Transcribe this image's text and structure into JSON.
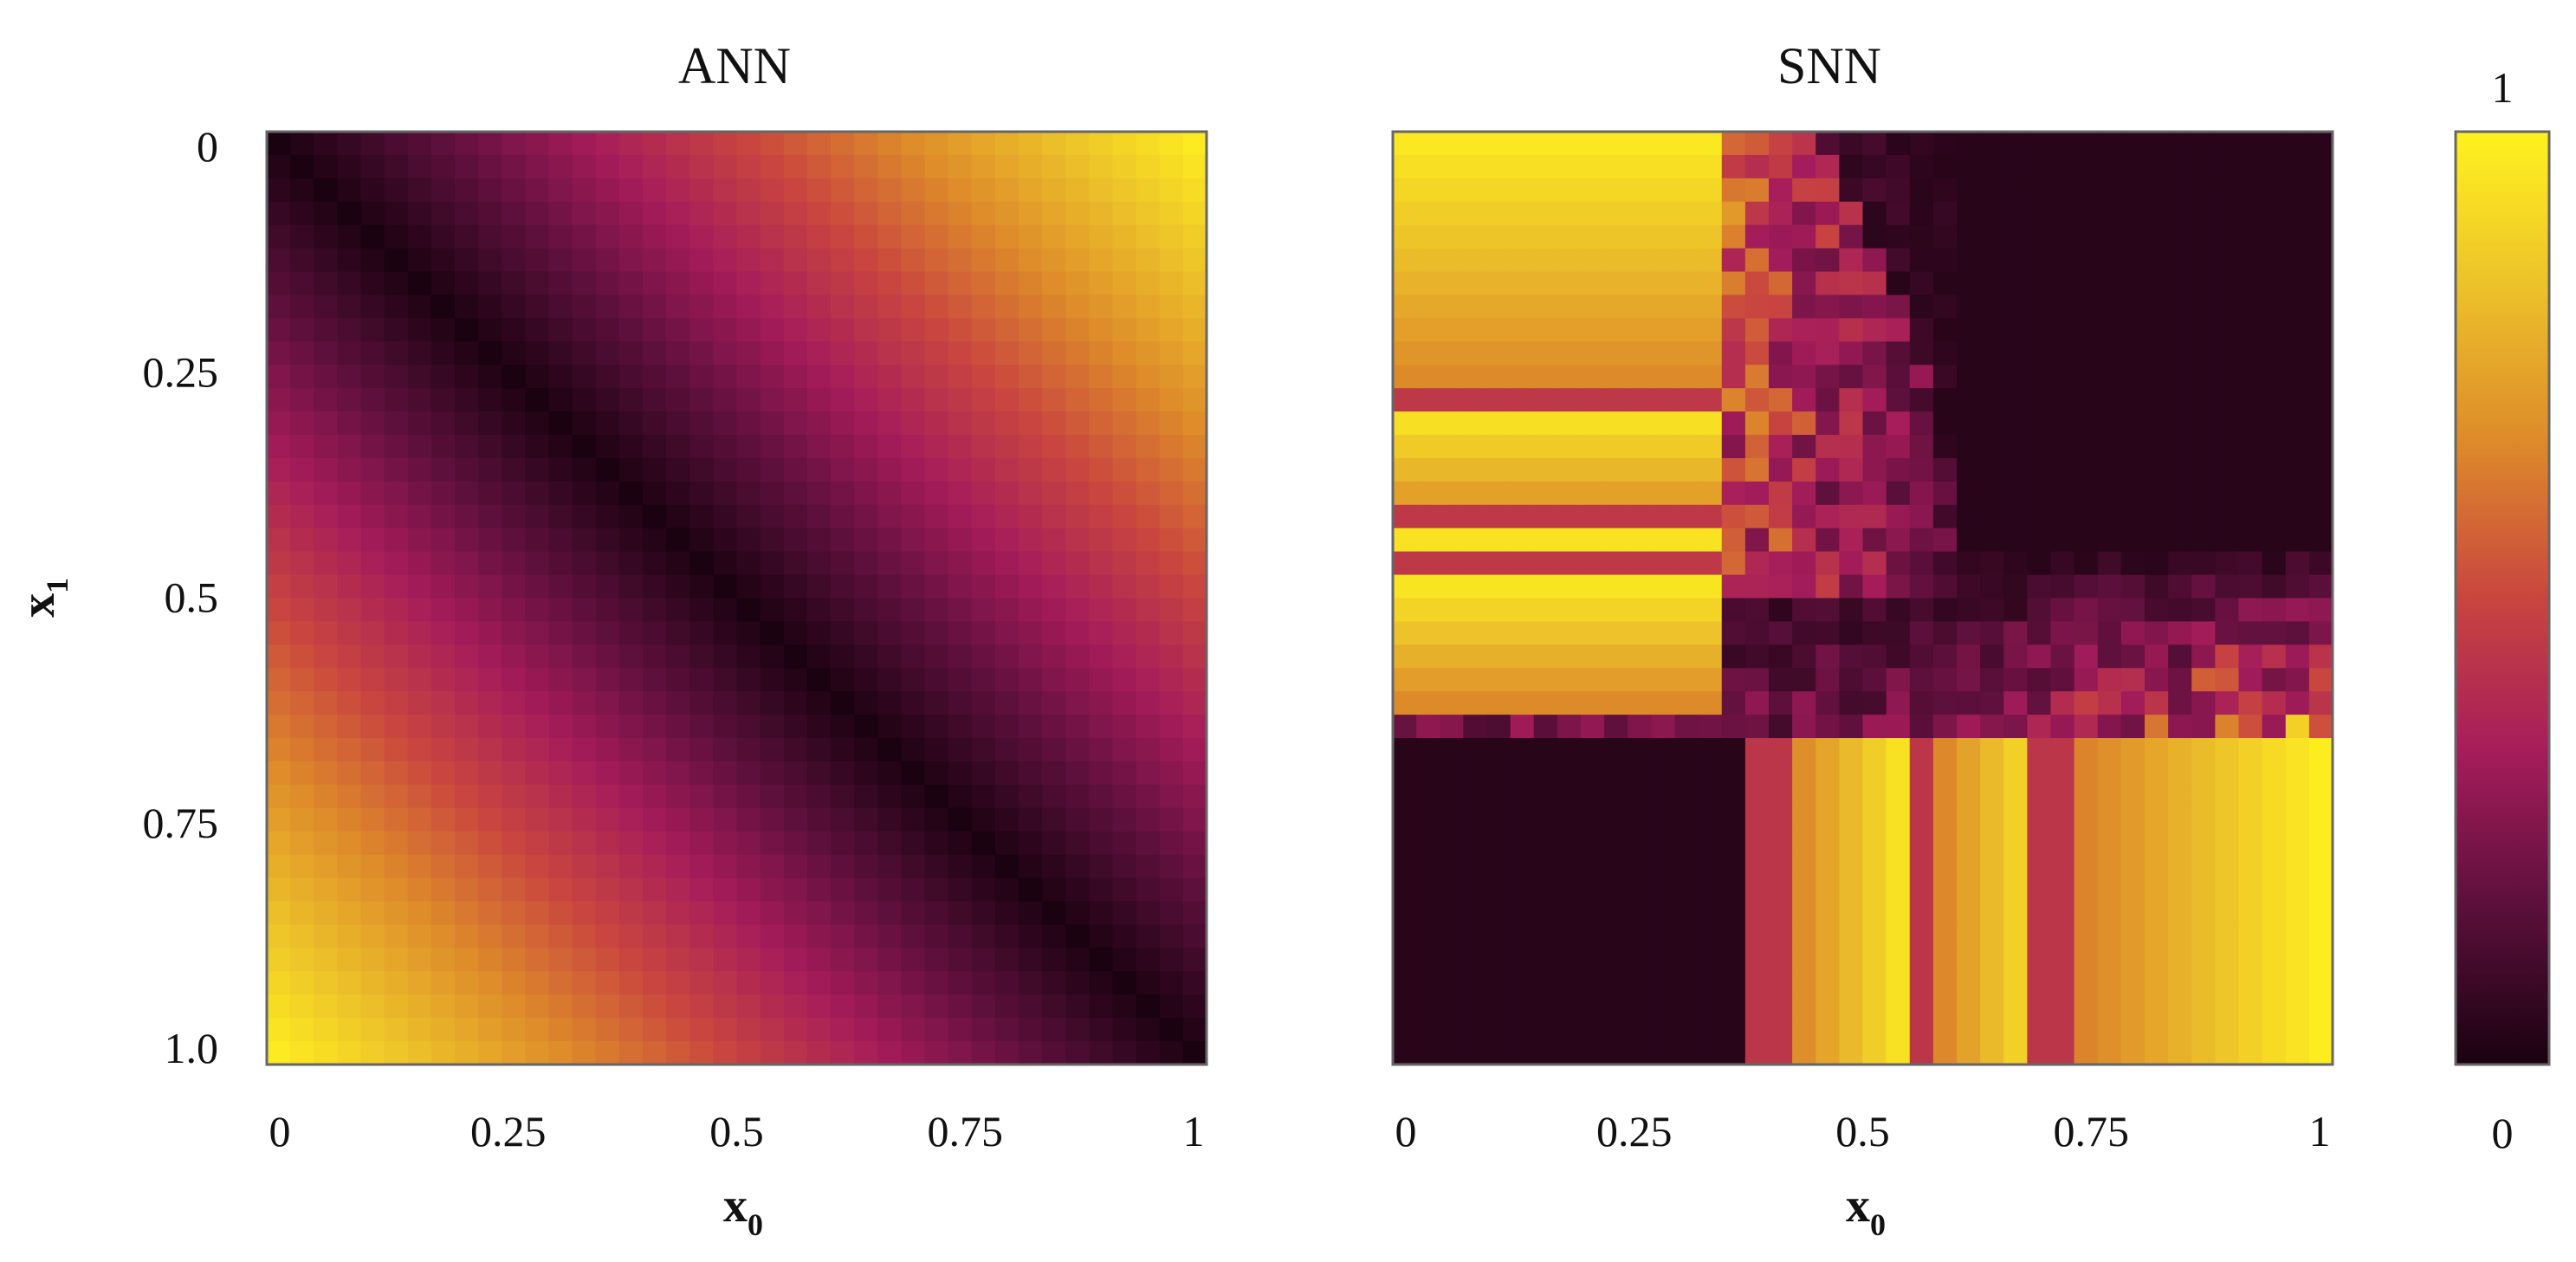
{
  "chart_data": [
    {
      "type": "heatmap",
      "title": "ANN",
      "xlabel": "x",
      "xlabel_sub": "0",
      "ylabel": "x",
      "ylabel_sub": "1",
      "xlim": [
        0,
        1
      ],
      "ylim": [
        0,
        1
      ],
      "y_inverted": true,
      "grid": 40,
      "xticks": [
        0,
        0.25,
        0.5,
        0.75,
        1
      ],
      "xtick_labels": [
        "0",
        "0.25",
        "0.5",
        "0.75",
        "1"
      ],
      "yticks": [
        0,
        0.25,
        0.5,
        0.75,
        1
      ],
      "ytick_labels": [
        "0",
        "0.25",
        "0.5",
        "0.75",
        "1.0"
      ],
      "function": "abs(x0 - x1)",
      "description_of_values": "value = |x0 - x1|, 0 on the diagonal, 1 at corners (0,1) and (1,0)"
    },
    {
      "type": "heatmap",
      "title": "SNN",
      "xlabel": "x",
      "xlabel_sub": "0",
      "xlim": [
        0,
        1
      ],
      "ylim": [
        0,
        1
      ],
      "y_inverted": true,
      "grid": 40,
      "xticks": [
        0,
        0.25,
        0.5,
        0.75,
        1
      ],
      "xtick_labels": [
        "0",
        "0.25",
        "0.5",
        "0.75",
        "1"
      ],
      "regions": [
        {
          "x": [
            0.0,
            0.355
          ],
          "y": [
            0.0,
            0.62
          ],
          "value_range": [
            0.62,
            0.98
          ],
          "stripes": "horizontal",
          "dips": [
            0.28,
            0.42,
            0.46
          ]
        },
        {
          "x": [
            0.355,
            0.6
          ],
          "y": [
            0.0,
            0.5
          ],
          "value_range": [
            0.05,
            0.45
          ],
          "stripes": "noisy"
        },
        {
          "x": [
            0.6,
            1.0
          ],
          "y": [
            0.0,
            0.45
          ],
          "value": 0.04
        },
        {
          "x": [
            0.38,
            1.0
          ],
          "y": [
            0.45,
            0.65
          ],
          "value_range": [
            0.05,
            0.55
          ],
          "stripes": "noisy"
        },
        {
          "x": [
            0.0,
            0.38
          ],
          "y": [
            0.65,
            1.0
          ],
          "value": 0.04
        },
        {
          "x": [
            0.38,
            1.0
          ],
          "y": [
            0.65,
            1.0
          ],
          "value_range": [
            0.4,
            1.0
          ],
          "stripes": "vertical",
          "dips": [
            0.41,
            0.56,
            0.7
          ]
        }
      ]
    }
  ],
  "colorbar": {
    "min_label": "0",
    "max_label": "1",
    "colormap": [
      "#1a0210",
      "#5a0f3a",
      "#a51c5b",
      "#c9453f",
      "#dd8a2a",
      "#ecc12a",
      "#fff21e"
    ]
  },
  "frame_color": "#666666"
}
